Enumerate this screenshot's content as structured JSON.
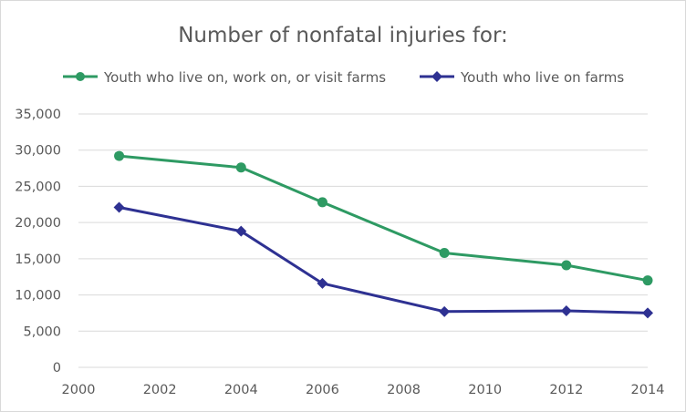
{
  "chart_data": {
    "type": "line",
    "title": "Number of nonfatal injuries for:",
    "xlabel": "",
    "ylabel": "",
    "xlim": [
      2000,
      2014
    ],
    "ylim": [
      0,
      35000
    ],
    "x_ticks": [
      "2000",
      "2002",
      "2004",
      "2006",
      "2008",
      "2010",
      "2012",
      "2014"
    ],
    "y_ticks": [
      "0",
      "5,000",
      "10,000",
      "15,000",
      "20,000",
      "25,000",
      "30,000",
      "35,000"
    ],
    "grid": "horizontal",
    "legend_position": "top",
    "series": [
      {
        "name": "Youth who live on, work on, or visit farms",
        "color": "#2e9a63",
        "marker": "circle",
        "x": [
          2001,
          2004,
          2006,
          2009,
          2012,
          2014
        ],
        "values": [
          29200,
          27600,
          22800,
          15800,
          14100,
          12000
        ]
      },
      {
        "name": "Youth who live on farms",
        "color": "#2e3192",
        "marker": "diamond",
        "x": [
          2001,
          2004,
          2006,
          2009,
          2012,
          2014
        ],
        "values": [
          22100,
          18800,
          11600,
          7700,
          7800,
          7500
        ]
      }
    ]
  }
}
